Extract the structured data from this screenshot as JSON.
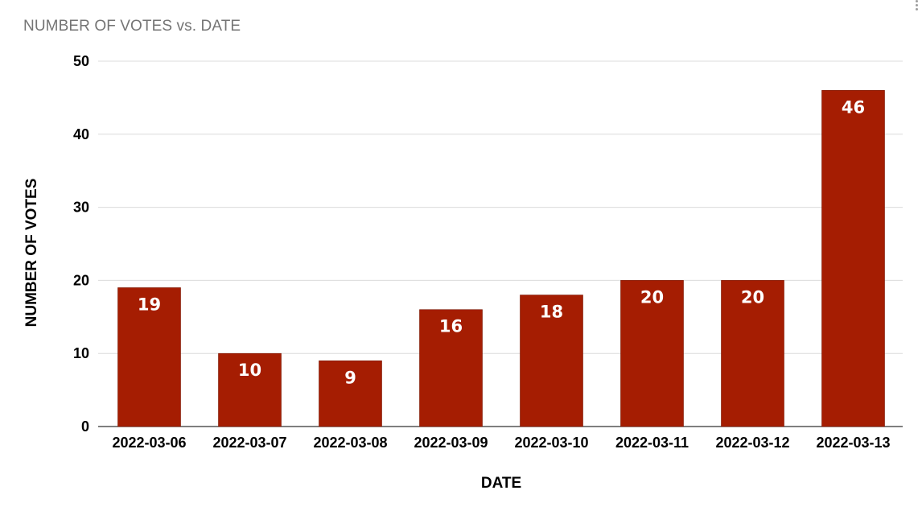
{
  "chart_data": {
    "type": "bar",
    "title": "NUMBER OF VOTES vs. DATE",
    "xlabel": "DATE",
    "ylabel": "NUMBER OF VOTES",
    "categories": [
      "2022-03-06",
      "2022-03-07",
      "2022-03-08",
      "2022-03-09",
      "2022-03-10",
      "2022-03-11",
      "2022-03-12",
      "2022-03-13"
    ],
    "values": [
      19,
      10,
      9,
      16,
      18,
      20,
      20,
      46
    ],
    "ylim": [
      0,
      50
    ],
    "yticks": [
      "0",
      "10",
      "20",
      "30",
      "40",
      "50"
    ],
    "grid": true,
    "legend": "none",
    "bar_color": "#a51d02",
    "data_labels": true
  },
  "menu": {
    "icon": "more-vert-icon"
  }
}
